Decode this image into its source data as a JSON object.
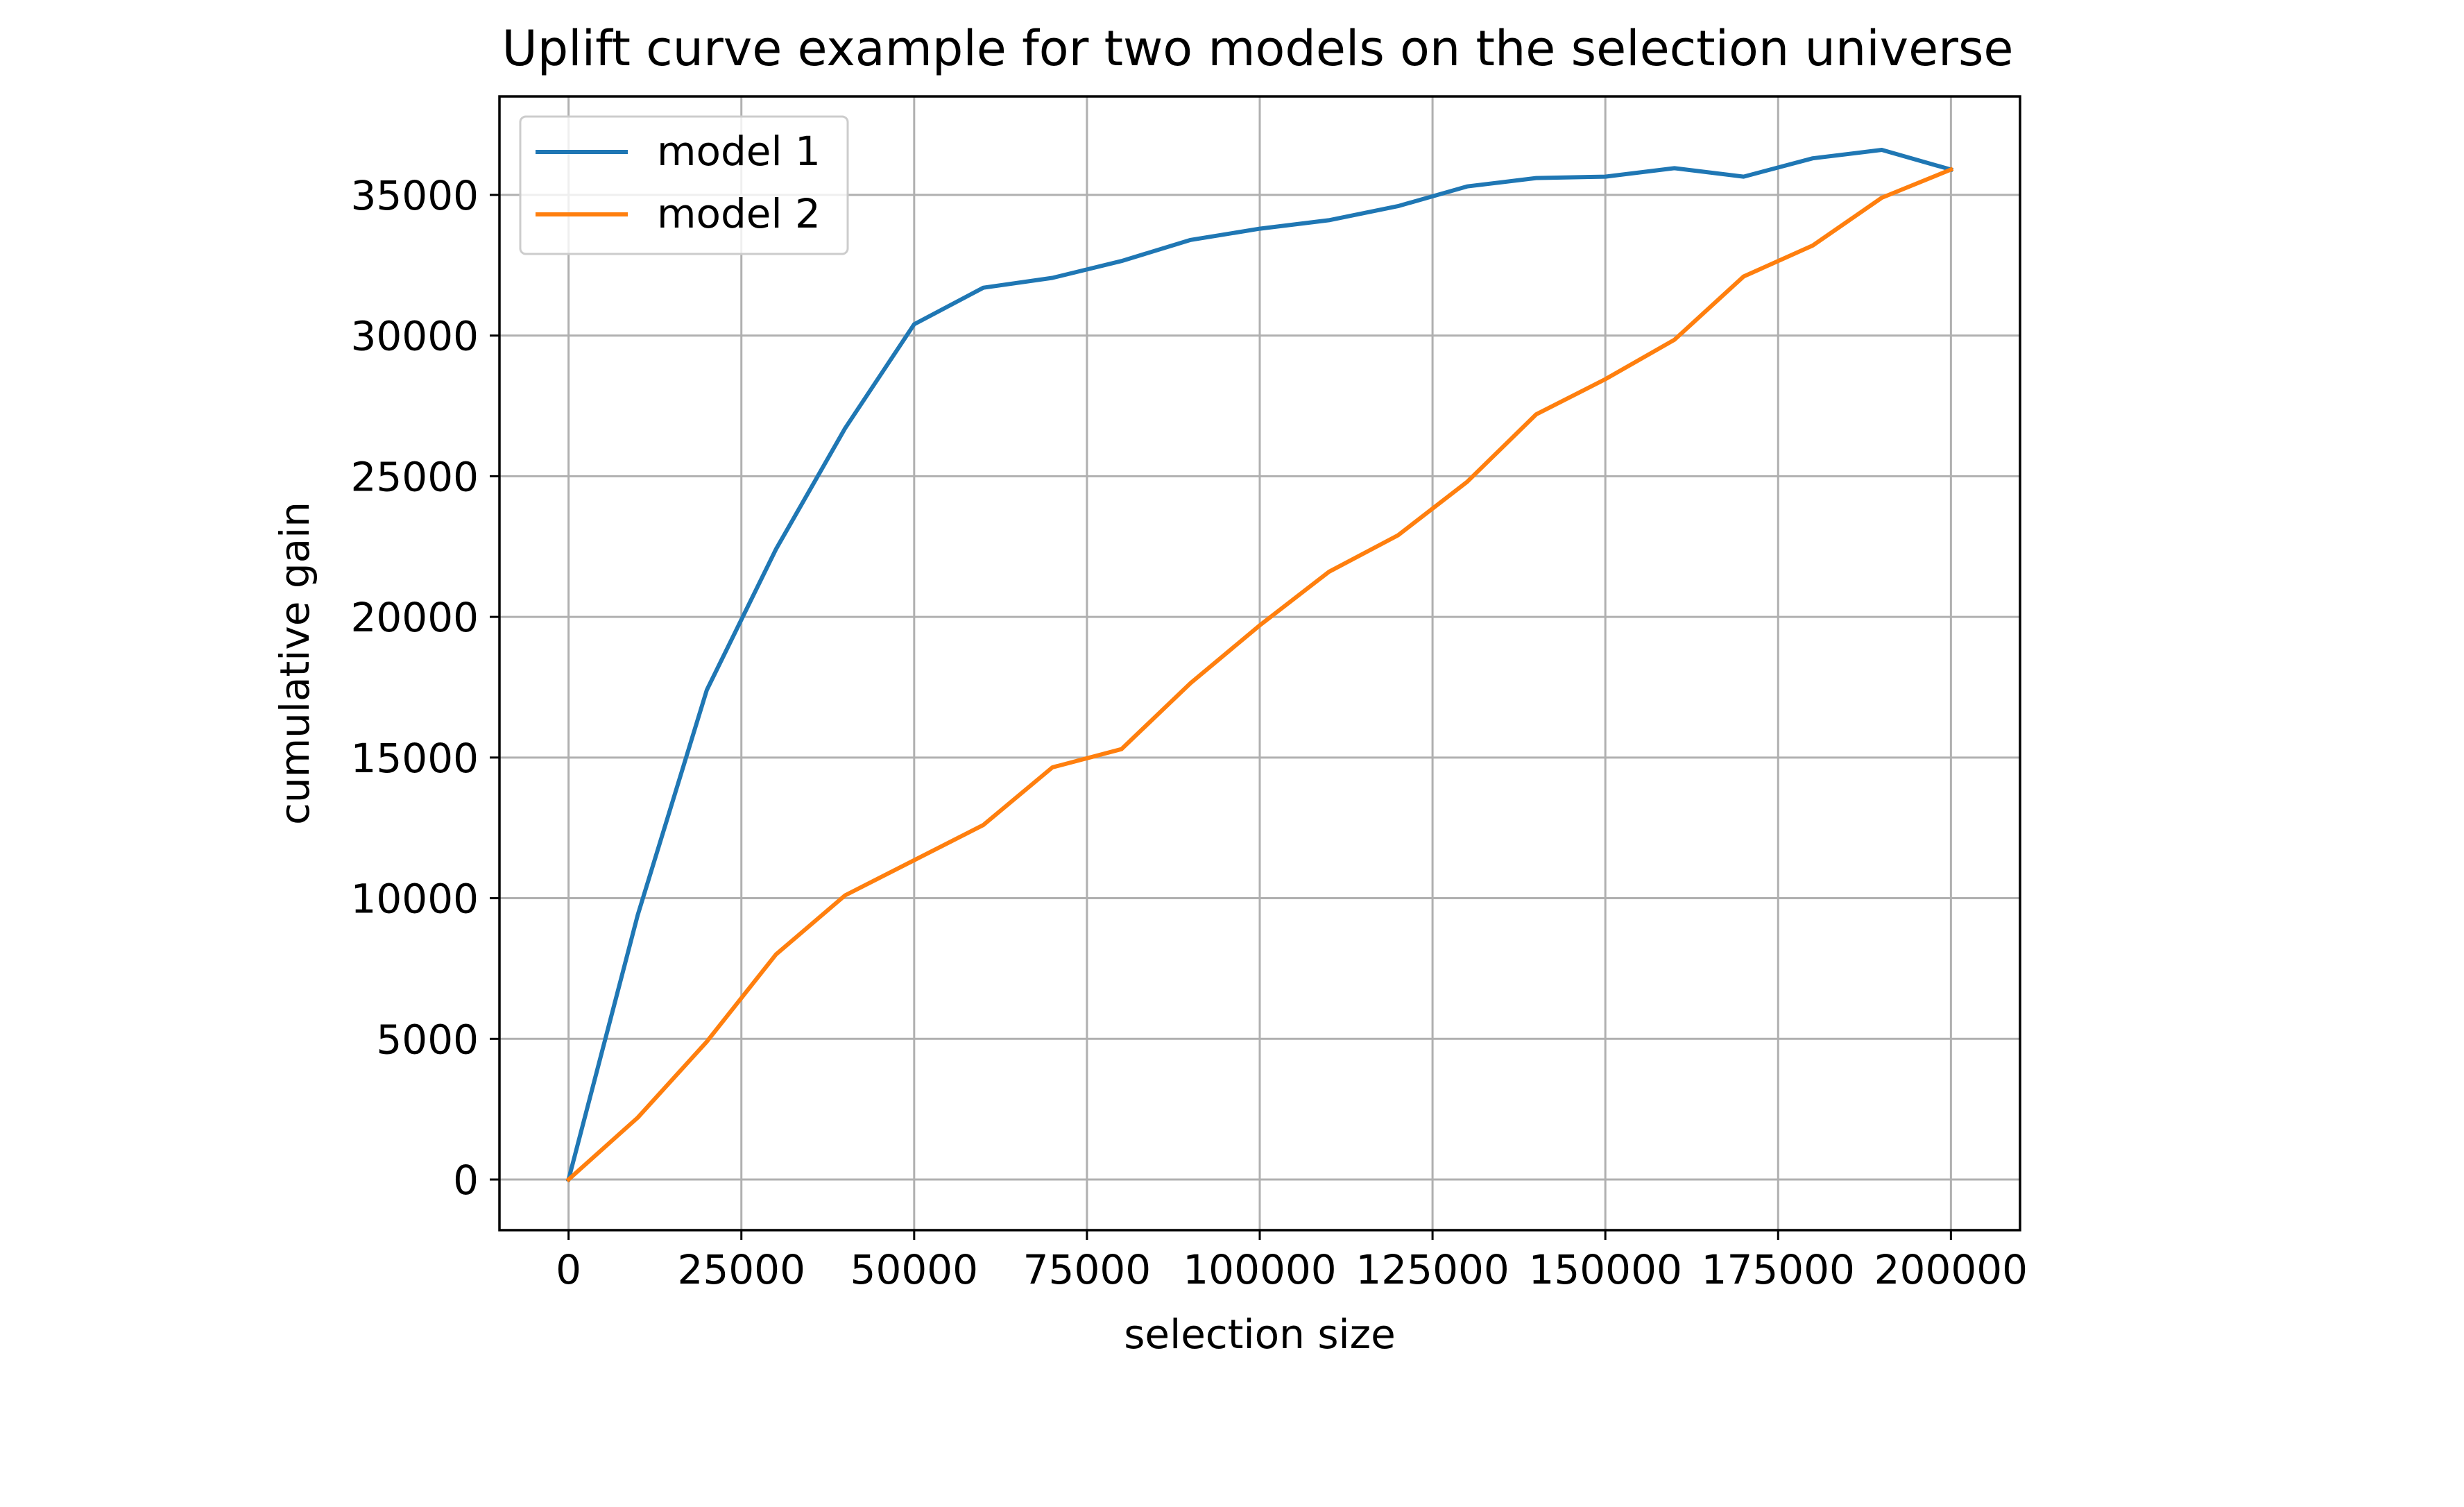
{
  "chart_data": {
    "type": "line",
    "title": "Uplift curve example for two models on the selection universe",
    "xlabel": "selection size",
    "ylabel": "cumulative gain",
    "xlim": [
      -10000,
      210000
    ],
    "ylim": [
      -1800,
      38500
    ],
    "xticks": [
      0,
      25000,
      50000,
      75000,
      100000,
      125000,
      150000,
      175000,
      200000
    ],
    "yticks": [
      0,
      5000,
      10000,
      15000,
      20000,
      25000,
      30000,
      35000
    ],
    "grid": true,
    "legend_position": "upper-left",
    "x": [
      0,
      10000,
      20000,
      30000,
      40000,
      50000,
      60000,
      70000,
      80000,
      90000,
      100000,
      110000,
      120000,
      130000,
      140000,
      150000,
      160000,
      170000,
      180000,
      190000,
      200000
    ],
    "series": [
      {
        "name": "model 1",
        "color": "#1f77b4",
        "values": [
          0,
          9400,
          17400,
          22400,
          26700,
          30400,
          31700,
          32050,
          32650,
          33400,
          33800,
          34100,
          34600,
          35300,
          35600,
          35650,
          35950,
          35650,
          36300,
          36600,
          35900
        ]
      },
      {
        "name": "model 2",
        "color": "#ff7f0e",
        "values": [
          0,
          2200,
          4900,
          8000,
          10100,
          11350,
          12600,
          14650,
          15300,
          17650,
          19700,
          21600,
          22900,
          24800,
          27200,
          28450,
          29850,
          32100,
          33200,
          34900,
          35900
        ]
      }
    ]
  }
}
